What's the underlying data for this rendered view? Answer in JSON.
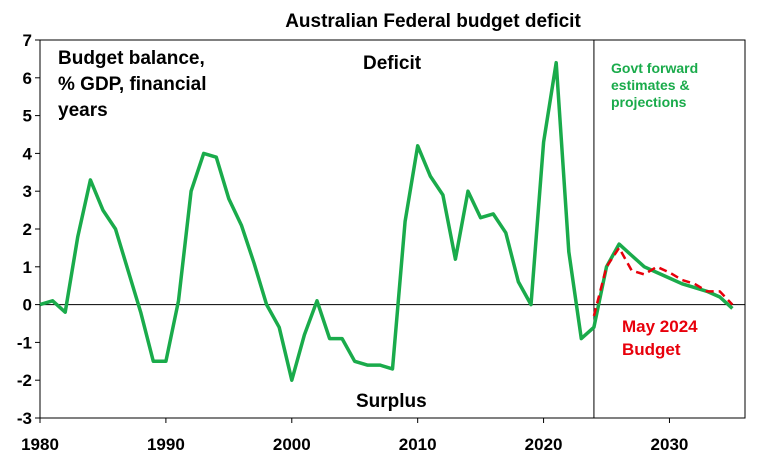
{
  "chart_data": {
    "type": "line",
    "title": "Australian Federal budget deficit",
    "xlim": [
      1980,
      2036
    ],
    "ylim": [
      -3,
      7
    ],
    "x_ticks": [
      1980,
      1990,
      2000,
      2010,
      2020,
      2030
    ],
    "y_ticks": [
      -3,
      -2,
      -1,
      0,
      1,
      2,
      3,
      4,
      5,
      6,
      7
    ],
    "grid": false,
    "annotations": {
      "label_top_left": [
        "Budget balance,",
        "% GDP, financial",
        "years"
      ],
      "deficit": "Deficit",
      "surplus": "Surplus",
      "forward": [
        "Govt forward",
        "estimates &",
        "projections"
      ],
      "may_budget": [
        "May 2024",
        "Budget"
      ]
    },
    "divider_x": 2024,
    "series": [
      {
        "color": "#1aab4b",
        "style": "solid",
        "x": [
          1980,
          1981,
          1982,
          1983,
          1984,
          1985,
          1986,
          1987,
          1988,
          1989,
          1990,
          1991,
          1992,
          1993,
          1994,
          1995,
          1996,
          1997,
          1998,
          1999,
          2000,
          2001,
          2002,
          2003,
          2004,
          2005,
          2006,
          2007,
          2008,
          2009,
          2010,
          2011,
          2012,
          2013,
          2014,
          2015,
          2016,
          2017,
          2018,
          2019,
          2020,
          2021,
          2022,
          2023,
          2024,
          2025,
          2026,
          2027,
          2028,
          2029,
          2030,
          2031,
          2032,
          2033,
          2034,
          2035
        ],
        "values": [
          0.0,
          0.1,
          -0.2,
          1.8,
          3.3,
          2.5,
          2.0,
          0.9,
          -0.2,
          -1.5,
          -1.5,
          0.1,
          3.0,
          4.0,
          3.9,
          2.8,
          2.1,
          1.1,
          0.0,
          -0.6,
          -2.0,
          -0.8,
          0.1,
          -0.9,
          -0.9,
          -1.5,
          -1.6,
          -1.6,
          -1.7,
          2.2,
          4.2,
          3.4,
          2.9,
          1.2,
          3.0,
          2.3,
          2.4,
          1.9,
          0.6,
          0.0,
          4.3,
          6.4,
          1.4,
          -0.9,
          -0.6,
          1.0,
          1.6,
          1.3,
          1.0,
          0.85,
          0.7,
          0.55,
          0.45,
          0.35,
          0.2,
          -0.1
        ]
      },
      {
        "color": "#e8000b",
        "style": "dashed",
        "x": [
          2024,
          2025,
          2026,
          2027,
          2028,
          2029,
          2030,
          2031,
          2032,
          2033,
          2034,
          2035
        ],
        "values": [
          -0.3,
          1.0,
          1.5,
          0.9,
          0.8,
          1.0,
          0.85,
          0.65,
          0.55,
          0.35,
          0.35,
          0.0
        ]
      }
    ]
  }
}
